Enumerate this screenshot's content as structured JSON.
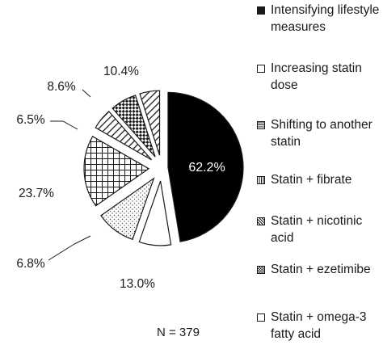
{
  "chart_data": {
    "type": "pie",
    "slices": [
      {
        "label": "Intensifying lifestyle measures",
        "value": 62.2,
        "value_label": "62.2%",
        "pattern": "solid-black"
      },
      {
        "label": "Increasing statin dose",
        "value": 10.4,
        "value_label": "10.4%",
        "pattern": "white"
      },
      {
        "label": "Shifting to another statin",
        "value": 13.0,
        "value_label": "13.0%",
        "pattern": "dots"
      },
      {
        "label": "Statin + fibrate",
        "value": 23.7,
        "value_label": "23.7%",
        "pattern": "grid"
      },
      {
        "label": "Statin + nicotinic acid",
        "value": 6.8,
        "value_label": "6.8%",
        "pattern": "diagonal-lines"
      },
      {
        "label": "Statin + ezetimibe",
        "value": 8.6,
        "value_label": "8.6%",
        "pattern": "checker"
      },
      {
        "label": "Statin + omega-3 fatty acid",
        "value": 6.5,
        "value_label": "6.5%",
        "pattern": "diagonal-lines"
      }
    ],
    "legend_position": "right",
    "note": "N = 379"
  },
  "legend": [
    {
      "label": "Intensifying lifestyle measures",
      "pattern": "solid-black"
    },
    {
      "label": "Increasing statin dose",
      "pattern": "white"
    },
    {
      "label": "Shifting to another statin",
      "pattern": "horizontal-lines"
    },
    {
      "label": "Statin + fibrate",
      "pattern": "vertical-lines"
    },
    {
      "label": "Statin + nicotinic acid",
      "pattern": "diagonal-lines"
    },
    {
      "label": "Statin + ezetimibe",
      "pattern": "checker"
    },
    {
      "label": "Statin + omega-3 fatty acid",
      "pattern": "white"
    }
  ]
}
